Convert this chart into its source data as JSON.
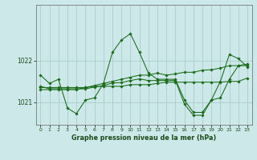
{
  "title": "Graphe pression niveau de la mer (hPa)",
  "bg_color": "#cce8e8",
  "grid_color_v": "#aacccc",
  "grid_color_h": "#aacccc",
  "line_color": "#1a6b1a",
  "marker_color": "#1a6b1a",
  "ylim": [
    1020.45,
    1023.35
  ],
  "yticks": [
    1021,
    1022
  ],
  "xticks": [
    0,
    1,
    2,
    3,
    4,
    5,
    6,
    7,
    8,
    9,
    10,
    11,
    12,
    13,
    14,
    15,
    16,
    17,
    18,
    19,
    20,
    21,
    22,
    23
  ],
  "series": [
    [
      1021.65,
      1021.45,
      1021.55,
      1020.85,
      1020.72,
      1021.05,
      1021.1,
      1021.45,
      1022.2,
      1022.5,
      1022.65,
      1022.2,
      1021.7,
      1021.55,
      1021.55,
      1021.55,
      1021.05,
      1020.75,
      1020.75,
      1021.05,
      1021.5,
      1022.15,
      1022.05,
      1021.85
    ],
    [
      1021.3,
      1021.3,
      1021.3,
      1021.3,
      1021.3,
      1021.35,
      1021.4,
      1021.45,
      1021.5,
      1021.55,
      1021.6,
      1021.65,
      1021.65,
      1021.7,
      1021.65,
      1021.68,
      1021.72,
      1021.72,
      1021.77,
      1021.78,
      1021.82,
      1021.88,
      1021.88,
      1021.92
    ],
    [
      1021.35,
      1021.35,
      1021.35,
      1021.35,
      1021.35,
      1021.35,
      1021.38,
      1021.38,
      1021.38,
      1021.38,
      1021.42,
      1021.42,
      1021.42,
      1021.45,
      1021.48,
      1021.48,
      1021.48,
      1021.48,
      1021.48,
      1021.48,
      1021.48,
      1021.5,
      1021.5,
      1021.58
    ],
    [
      1021.38,
      1021.32,
      1021.32,
      1021.32,
      1021.32,
      1021.32,
      1021.36,
      1021.4,
      1021.46,
      1021.47,
      1021.52,
      1021.56,
      1021.52,
      1021.52,
      1021.52,
      1021.52,
      1020.95,
      1020.68,
      1020.68,
      1021.05,
      1021.1,
      1021.55,
      1021.88,
      1021.88
    ]
  ]
}
